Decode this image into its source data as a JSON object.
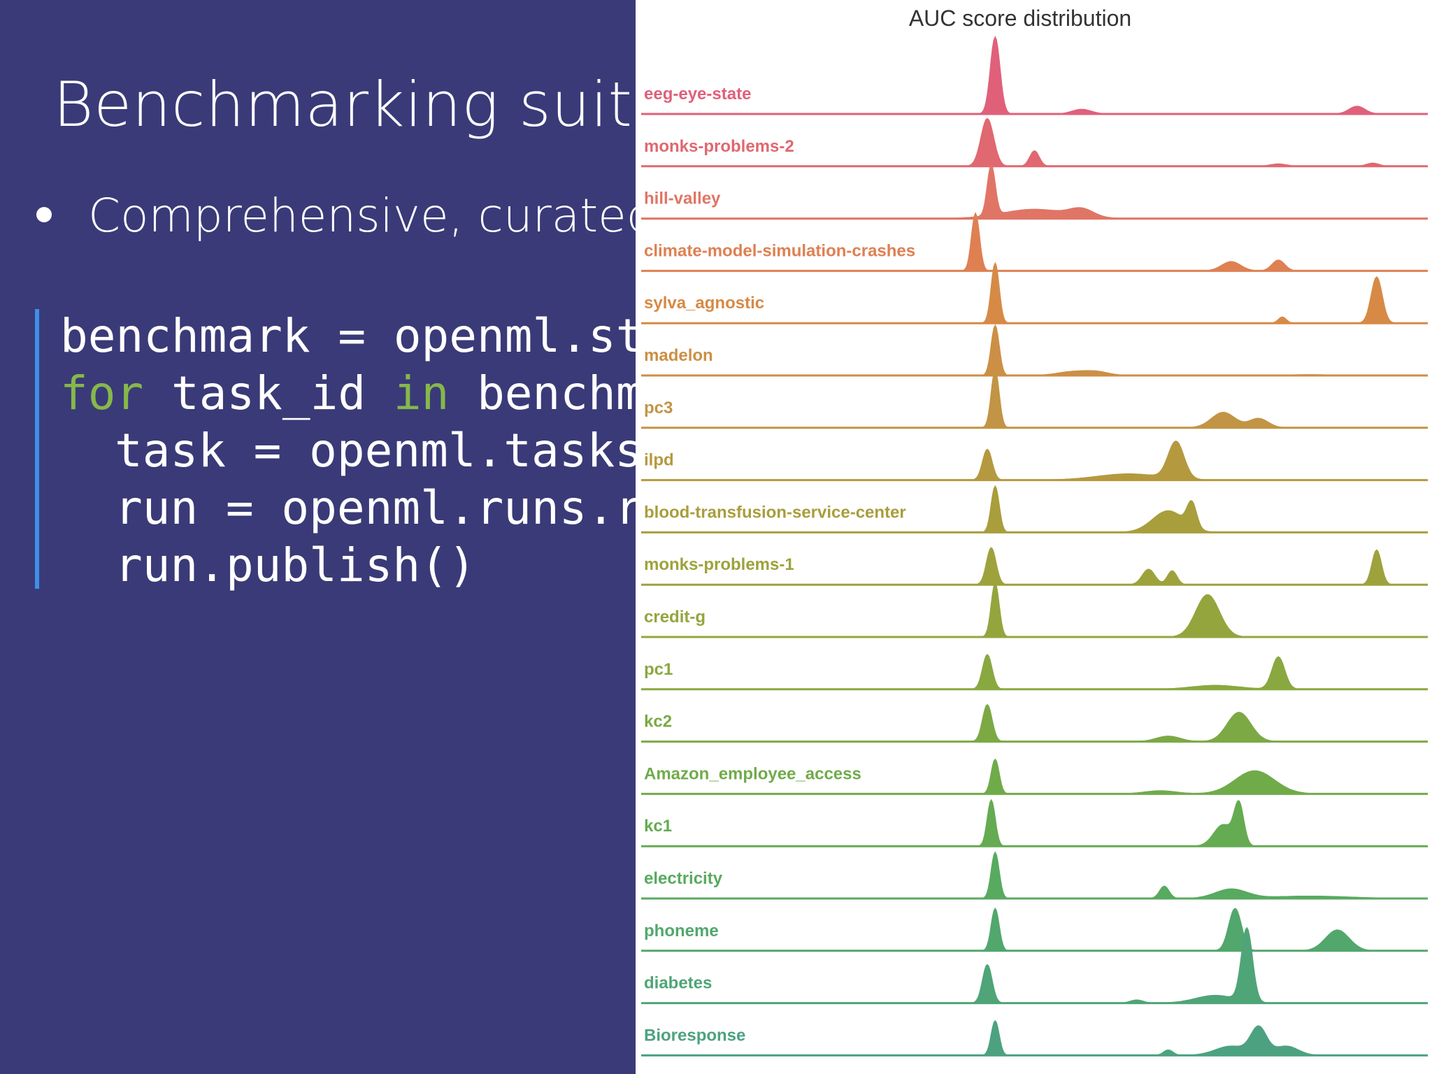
{
  "slide": {
    "title": "Benchmarking suites",
    "bullet": "Comprehensive, curated, ",
    "code": {
      "line1": "benchmark = openml.stu",
      "line2_kw1": "for",
      "line2_mid": " task_id ",
      "line2_kw2": "in",
      "line2_end": " benchma",
      "line3": "task = openml.tasks.",
      "line4": "run = openml.runs.ru",
      "line5": "run.publish()"
    }
  },
  "chart_data": {
    "type": "area",
    "title": "AUC score distribution",
    "xlim": [
      0,
      1
    ],
    "series": [
      {
        "name": "eeg-eye-state",
        "color": "#e0607a",
        "peaks": [
          [
            0.45,
            1.0,
            0.006
          ],
          [
            0.56,
            0.06,
            0.012
          ],
          [
            0.91,
            0.1,
            0.01
          ]
        ]
      },
      {
        "name": "monks-problems-2",
        "color": "#e06870",
        "peaks": [
          [
            0.44,
            0.62,
            0.008
          ],
          [
            0.5,
            0.2,
            0.006
          ],
          [
            0.81,
            0.03,
            0.01
          ],
          [
            0.93,
            0.04,
            0.008
          ]
        ]
      },
      {
        "name": "hill-valley",
        "color": "#e07566",
        "peaks": [
          [
            0.445,
            0.65,
            0.005
          ],
          [
            0.5,
            0.12,
            0.04
          ],
          [
            0.56,
            0.1,
            0.015
          ]
        ]
      },
      {
        "name": "climate-model-simulation-crashes",
        "color": "#de8052",
        "peaks": [
          [
            0.425,
            0.75,
            0.005
          ],
          [
            0.75,
            0.12,
            0.012
          ],
          [
            0.81,
            0.14,
            0.008
          ]
        ]
      },
      {
        "name": "sylva_agnostic",
        "color": "#d68a45",
        "peaks": [
          [
            0.45,
            0.78,
            0.005
          ],
          [
            0.815,
            0.08,
            0.005
          ],
          [
            0.935,
            0.6,
            0.007
          ]
        ]
      },
      {
        "name": "madelon",
        "color": "#cc8f45",
        "peaks": [
          [
            0.45,
            0.65,
            0.005
          ],
          [
            0.55,
            0.05,
            0.02
          ],
          [
            0.58,
            0.04,
            0.015
          ],
          [
            0.85,
            0.01,
            0.03
          ]
        ]
      },
      {
        "name": "pc3",
        "color": "#c29445",
        "peaks": [
          [
            0.45,
            0.75,
            0.005
          ],
          [
            0.74,
            0.2,
            0.015
          ],
          [
            0.785,
            0.12,
            0.012
          ]
        ]
      },
      {
        "name": "ilpd",
        "color": "#b5993f",
        "peaks": [
          [
            0.44,
            0.4,
            0.006
          ],
          [
            0.62,
            0.08,
            0.04
          ],
          [
            0.68,
            0.48,
            0.01
          ]
        ]
      },
      {
        "name": "blood-transfusion-service-center",
        "color": "#a89e3c",
        "peaks": [
          [
            0.45,
            0.6,
            0.005
          ],
          [
            0.67,
            0.28,
            0.02
          ],
          [
            0.7,
            0.32,
            0.006
          ]
        ]
      },
      {
        "name": "monks-problems-1",
        "color": "#9ea23c",
        "peaks": [
          [
            0.445,
            0.48,
            0.006
          ],
          [
            0.645,
            0.2,
            0.008
          ],
          [
            0.675,
            0.18,
            0.006
          ],
          [
            0.935,
            0.45,
            0.006
          ]
        ]
      },
      {
        "name": "credit-g",
        "color": "#94a53e",
        "peaks": [
          [
            0.45,
            0.7,
            0.005
          ],
          [
            0.72,
            0.55,
            0.015
          ]
        ]
      },
      {
        "name": "pc1",
        "color": "#89a840",
        "peaks": [
          [
            0.44,
            0.45,
            0.006
          ],
          [
            0.73,
            0.05,
            0.03
          ],
          [
            0.81,
            0.42,
            0.008
          ]
        ]
      },
      {
        "name": "kc2",
        "color": "#7ca944",
        "peaks": [
          [
            0.44,
            0.48,
            0.006
          ],
          [
            0.67,
            0.07,
            0.015
          ],
          [
            0.76,
            0.38,
            0.015
          ]
        ]
      },
      {
        "name": "Amazon_employee_access",
        "color": "#70ab4a",
        "peaks": [
          [
            0.45,
            0.45,
            0.005
          ],
          [
            0.66,
            0.04,
            0.02
          ],
          [
            0.78,
            0.3,
            0.025
          ]
        ]
      },
      {
        "name": "kc1",
        "color": "#64ab52",
        "peaks": [
          [
            0.445,
            0.6,
            0.005
          ],
          [
            0.74,
            0.28,
            0.012
          ],
          [
            0.76,
            0.52,
            0.006
          ]
        ]
      },
      {
        "name": "electricity",
        "color": "#58aa60",
        "peaks": [
          [
            0.45,
            0.6,
            0.005
          ],
          [
            0.665,
            0.16,
            0.006
          ],
          [
            0.75,
            0.12,
            0.02
          ],
          [
            0.85,
            0.03,
            0.05
          ]
        ]
      },
      {
        "name": "phoneme",
        "color": "#52a76c",
        "peaks": [
          [
            0.45,
            0.55,
            0.005
          ],
          [
            0.755,
            0.55,
            0.008
          ],
          [
            0.885,
            0.27,
            0.015
          ]
        ]
      },
      {
        "name": "diabetes",
        "color": "#4fa577",
        "peaks": [
          [
            0.44,
            0.5,
            0.006
          ],
          [
            0.63,
            0.04,
            0.008
          ],
          [
            0.77,
            0.95,
            0.007
          ],
          [
            0.73,
            0.1,
            0.025
          ]
        ]
      },
      {
        "name": "Bioresponse",
        "color": "#4ca280",
        "peaks": [
          [
            0.45,
            0.45,
            0.005
          ],
          [
            0.67,
            0.07,
            0.006
          ],
          [
            0.75,
            0.12,
            0.02
          ],
          [
            0.785,
            0.35,
            0.01
          ],
          [
            0.82,
            0.12,
            0.015
          ]
        ]
      }
    ]
  }
}
